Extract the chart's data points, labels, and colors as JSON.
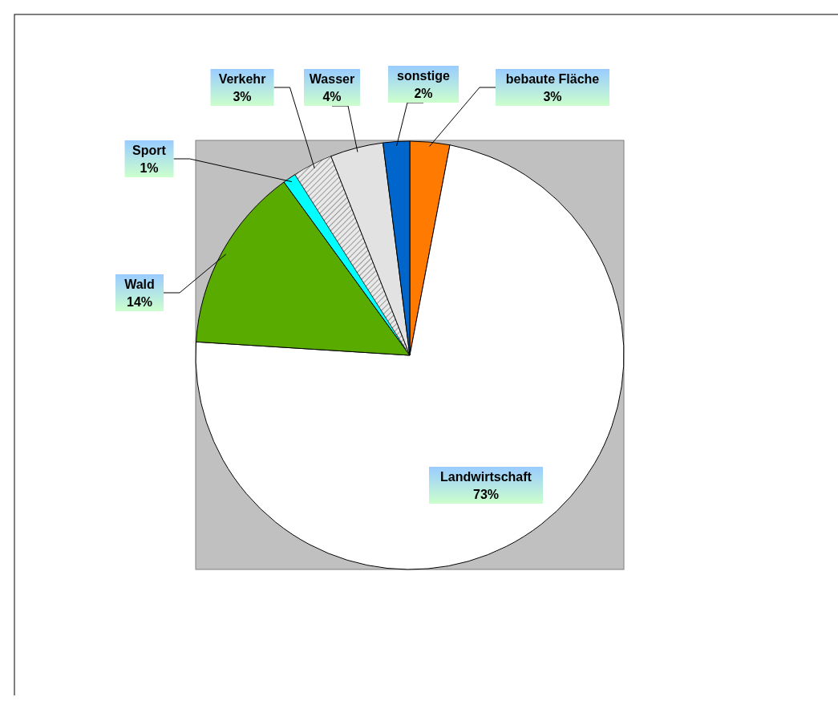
{
  "chart_data": {
    "type": "pie",
    "categories": [
      "bebaute Fläche",
      "Landwirtschaft",
      "Wald",
      "Sport",
      "Verkehr",
      "Wasser",
      "sonstige"
    ],
    "values": [
      3,
      73,
      14,
      1,
      3,
      4,
      2
    ],
    "value_labels": [
      "3%",
      "73%",
      "14%",
      "1%",
      "3%",
      "4%",
      "2%"
    ],
    "colors": [
      "#ff7a00",
      "#ffffff",
      "#5aab00",
      "#00ffff",
      "#c8c8c8",
      "#e2e2e2",
      "#0066cc"
    ],
    "legend": false
  }
}
